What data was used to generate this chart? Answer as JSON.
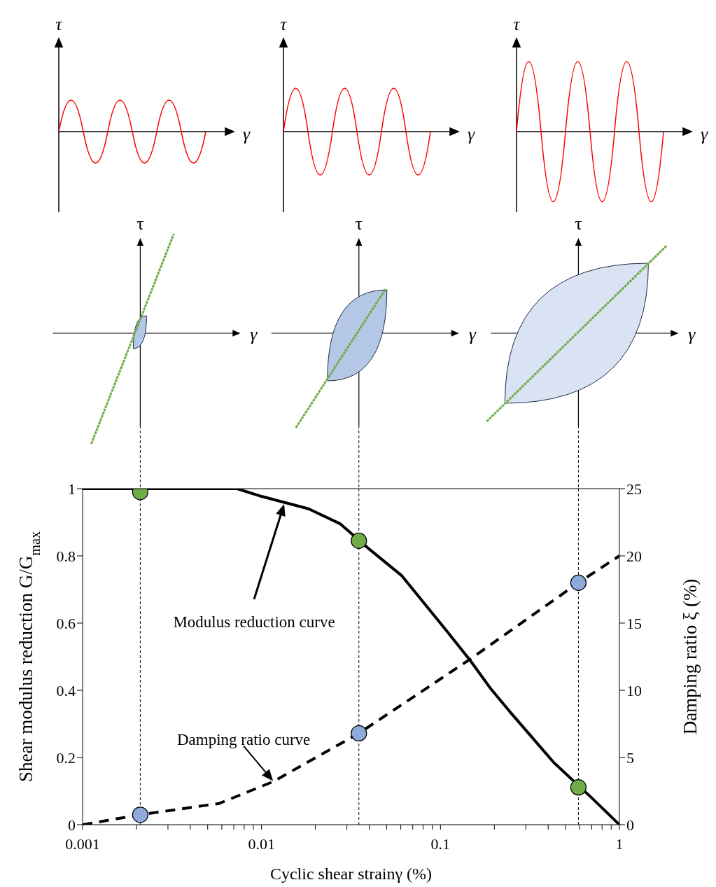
{
  "chart_data": {
    "type": "line",
    "xlabel": "Cyclic shear strainγ (%)",
    "ylabel": "Shear modulus reduction G/G$_{max}$",
    "y2label": "Damping ratio ξ (%)",
    "log": "x",
    "xlim": [
      0.001,
      1
    ],
    "xticks": [
      0.001,
      {
        "value": 0.002,
        "label": null
      },
      {
        "value": 0.003,
        "label": null
      },
      {
        "value": 0.004,
        "label": null
      },
      {
        "value": 0.005,
        "label": null
      },
      {
        "value": 0.006,
        "label": null
      },
      {
        "value": 0.007,
        "label": null
      },
      {
        "value": 0.008,
        "label": null
      },
      {
        "value": 0.009,
        "label": null
      },
      0.01,
      {
        "value": 0.02,
        "label": null
      },
      {
        "value": 0.03,
        "label": null
      },
      {
        "value": 0.04,
        "label": null
      },
      {
        "value": 0.05,
        "label": null
      },
      {
        "value": 0.06,
        "label": null
      },
      {
        "value": 0.07,
        "label": null
      },
      {
        "value": 0.08,
        "label": null
      },
      {
        "value": 0.09,
        "label": null
      },
      0.1,
      {
        "value": 0.2,
        "label": null
      },
      {
        "value": 0.3,
        "label": null
      },
      {
        "value": 0.4,
        "label": null
      },
      {
        "value": 0.5,
        "label": null
      },
      {
        "value": 0.6,
        "label": null
      },
      {
        "value": 0.7,
        "label": null
      },
      {
        "value": 0.8,
        "label": null
      },
      {
        "value": 0.9,
        "label": null
      },
      1
    ],
    "ylim": [
      0,
      1
    ],
    "yticks": [
      0,
      0.2,
      0.4,
      0.6,
      0.8,
      1
    ],
    "y2lim": [
      0,
      25
    ],
    "y2ticks": [
      0,
      5,
      10,
      15,
      20,
      25
    ],
    "series": [
      {
        "color": "#000000",
        "line_style": "solid",
        "marker": "none",
        "x": [
          0.001,
          0.0073,
          0.01,
          0.0183,
          0.0276,
          0.04,
          0.0605,
          0.107,
          0.146,
          0.192,
          0.25,
          0.43,
          0.7,
          1
        ],
        "values": [
          1,
          1,
          0.977,
          0.94,
          0.895,
          0.82,
          0.742,
          0.58,
          0.49,
          0.403,
          0.33,
          0.185,
          0.08,
          0
        ]
      },
      {
        "axis": "y2",
        "color": "#000000",
        "line_style": "dashed",
        "marker": "none",
        "x": [
          0.001,
          0.0021,
          0.0058,
          0.0116,
          0.035,
          0.146,
          0.59,
          1
        ],
        "values": [
          0,
          0.74,
          1.58,
          3.2,
          6.8,
          12.3,
          18,
          20
        ]
      },
      {
        "type": "scatter",
        "color": "#70ad47",
        "marker": "circle",
        "x": [
          0.0021,
          0.035,
          0.59
        ],
        "values": [
          0.99,
          0.845,
          0.111
        ]
      },
      {
        "type": "scatter",
        "axis": "y2",
        "color": "#8eaadb",
        "marker": "circle",
        "x": [
          0.0021,
          0.035,
          0.59
        ],
        "values": [
          0.74,
          6.8,
          18
        ]
      }
    ],
    "ref_lines": [
      {
        "axis": "x",
        "value": 0.0021,
        "line_style": "dashed",
        "color": "#000000"
      },
      {
        "axis": "x",
        "value": 0.035,
        "line_style": "dashed",
        "color": "#000000"
      },
      {
        "axis": "x",
        "value": 0.59,
        "line_style": "dashed",
        "color": "#000000"
      }
    ],
    "annotations": [
      "Modulus reduction curve",
      {
        "text": "Damping ratio curve",
        "x": 0.0116,
        "y": 0.13
      },
      "τ",
      "γ"
    ]
  }
}
